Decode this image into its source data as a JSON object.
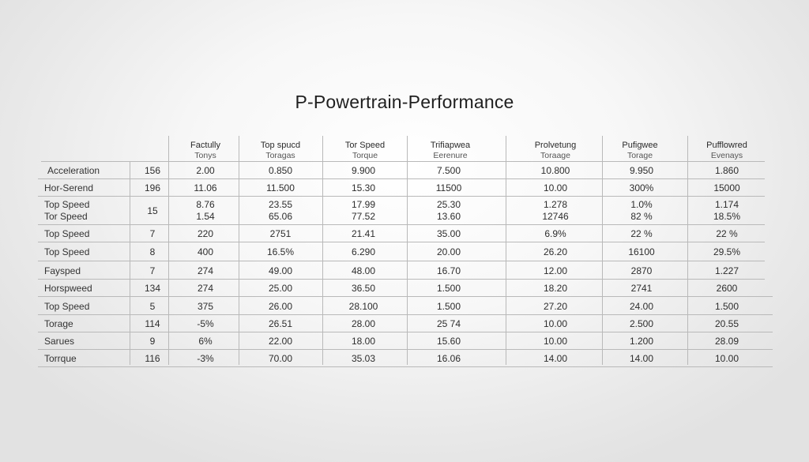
{
  "title": "P-Powertrain-Performance",
  "headers": [
    {
      "line1": "Factully",
      "line2": "Tonys"
    },
    {
      "line1": "Top spucd",
      "line2": "Toragas"
    },
    {
      "line1": "Tor Speed",
      "line2": "Torque"
    },
    {
      "line1": "Trifiapwea",
      "line2": "Eerenure"
    },
    {
      "line1": "Prolvetung",
      "line2": "Toraage"
    },
    {
      "line1": "Pufigwee",
      "line2": "Torage"
    },
    {
      "line1": "Pufflowred",
      "line2": "Evenays"
    }
  ],
  "rows": [
    {
      "label": "Acceleration",
      "num": "156",
      "cells": [
        "2.00",
        "0.850",
        "9.900",
        "7.500",
        "10.800",
        "9.950",
        "1.860"
      ]
    },
    {
      "label": "Hor-Serend",
      "num": "196",
      "cells": [
        "11.06",
        "11.500",
        "15.30",
        "11500",
        "10.00",
        "300%",
        "15000"
      ]
    },
    {
      "label": "Top Speed\nTor Speed",
      "num": "15",
      "cells": [
        "8.76\n1.54",
        "23.55\n65.06",
        "17.99\n77.52",
        "25.30\n13.60",
        "1.278\n12746",
        "1.0%\n82 %",
        "1.174\n18.5%"
      ]
    },
    {
      "label": "Top Speed",
      "num": "7",
      "cells": [
        "220",
        "2751",
        "21.41",
        "35.00",
        "6.9%",
        "22 %",
        "22 %"
      ]
    },
    {
      "label": "Top Speed",
      "num": "8",
      "cells": [
        "400",
        "16.5%",
        "6.290",
        "20.00",
        "26.20",
        "16100",
        "29.5%"
      ]
    },
    {
      "label": "Faysped",
      "num": "7",
      "cells": [
        "274",
        "49.00",
        "48.00",
        "16.70",
        "12.00",
        "2870",
        "1.227"
      ]
    },
    {
      "label": "Horspweed",
      "num": "134",
      "cells": [
        "274",
        "25.00",
        "36.50",
        "1.500",
        "18.20",
        "2741",
        "2600"
      ]
    },
    {
      "label": "Top Speed",
      "num": "5",
      "cells": [
        "375",
        "26.00",
        "28.100",
        "1.500",
        "27.20",
        "24.00",
        "1.500"
      ]
    },
    {
      "label": "Torage",
      "num": "114",
      "cells": [
        "-5%",
        "26.51",
        "28.00",
        "25 74",
        "10.00",
        "2.500",
        "20.55"
      ]
    },
    {
      "label": "Sarues",
      "num": "9",
      "cells": [
        "6%",
        "22.00",
        "18.00",
        "15.60",
        "10.00",
        "1.200",
        "28.09"
      ]
    },
    {
      "label": "Torrque",
      "num": "116",
      "cells": [
        "-3%",
        "70.00",
        "35.03",
        "16.06",
        "14.00",
        "14.00",
        "10.00"
      ]
    }
  ]
}
